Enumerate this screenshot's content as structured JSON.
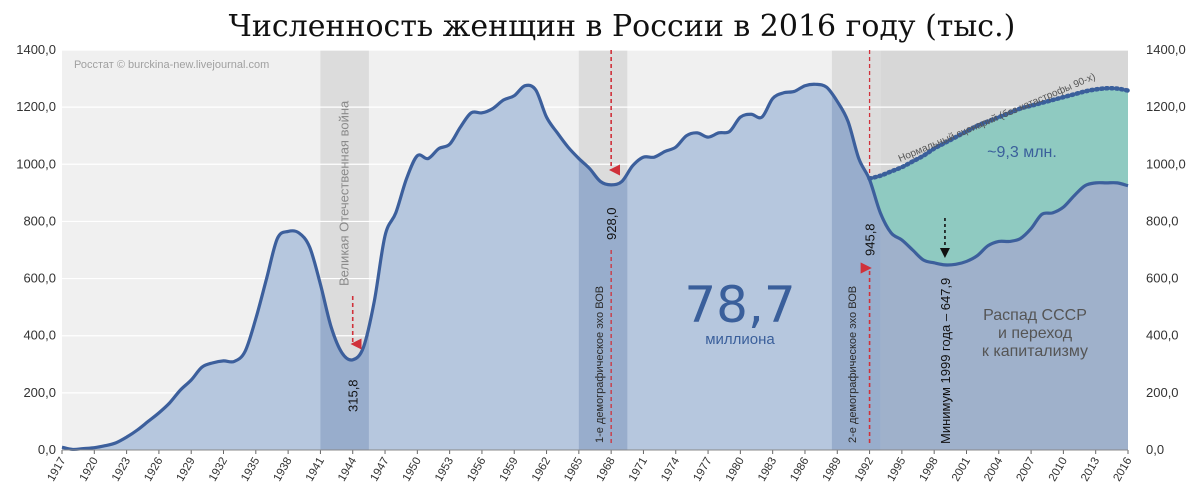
{
  "chart_data": {
    "type": "area",
    "title": "Численность женщин в России в 2016 году (тыс.)",
    "source": "Росстат © burckina-new.livejournal.com",
    "xlim": [
      1917,
      2016
    ],
    "ylim": [
      0,
      1400
    ],
    "y_ticks": [
      "0,0",
      "200,0",
      "400,0",
      "600,0",
      "800,0",
      "1000,0",
      "1200,0",
      "1400,0"
    ],
    "x_ticks": [
      1917,
      1920,
      1923,
      1926,
      1929,
      1932,
      1935,
      1938,
      1941,
      1944,
      1947,
      1950,
      1953,
      1956,
      1959,
      1962,
      1965,
      1968,
      1971,
      1974,
      1977,
      1980,
      1983,
      1986,
      1989,
      1992,
      1995,
      1998,
      2001,
      2004,
      2007,
      2010,
      2013,
      2016
    ],
    "grid": true,
    "series": [
      {
        "color": "#3c5f9c",
        "fill": "#b6c7de",
        "x": [
          1917,
          1918,
          1919,
          1920,
          1921,
          1922,
          1923,
          1924,
          1925,
          1926,
          1927,
          1928,
          1929,
          1930,
          1931,
          1932,
          1933,
          1934,
          1935,
          1936,
          1937,
          1938,
          1939,
          1940,
          1941,
          1942,
          1943,
          1944,
          1945,
          1946,
          1947,
          1948,
          1949,
          1950,
          1951,
          1952,
          1953,
          1954,
          1955,
          1956,
          1957,
          1958,
          1959,
          1960,
          1961,
          1962,
          1963,
          1964,
          1965,
          1966,
          1967,
          1968,
          1969,
          1970,
          1971,
          1972,
          1973,
          1974,
          1975,
          1976,
          1977,
          1978,
          1979,
          1980,
          1981,
          1982,
          1983,
          1984,
          1985,
          1986,
          1987,
          1988,
          1989,
          1990,
          1991,
          1992,
          1993,
          1994,
          1995,
          1996,
          1997,
          1998,
          1999,
          2000,
          2001,
          2002,
          2003,
          2004,
          2005,
          2006,
          2007,
          2008,
          2009,
          2010,
          2011,
          2012,
          2013,
          2014,
          2015,
          2016
        ],
        "values": [
          10,
          2,
          5,
          8,
          15,
          25,
          45,
          70,
          100,
          130,
          165,
          210,
          245,
          290,
          305,
          312,
          310,
          345,
          460,
          600,
          740,
          765,
          760,
          710,
          580,
          430,
          340,
          315.8,
          360,
          520,
          750,
          830,
          950,
          1030,
          1020,
          1055,
          1070,
          1130,
          1180,
          1180,
          1195,
          1225,
          1240,
          1275,
          1260,
          1165,
          1110,
          1060,
          1020,
          985,
          940,
          928,
          940,
          995,
          1025,
          1025,
          1045,
          1060,
          1100,
          1110,
          1095,
          1110,
          1115,
          1165,
          1175,
          1165,
          1230,
          1250,
          1255,
          1275,
          1280,
          1270,
          1220,
          1150,
          1020,
          945.8,
          830,
          760,
          735,
          700,
          665,
          655,
          647.9,
          650,
          660,
          680,
          715,
          730,
          730,
          740,
          775,
          825,
          830,
          850,
          890,
          925,
          935,
          935,
          935,
          925
        ]
      },
      {
        "name": "Нормальный сценарий (без катастрофы 90-х)",
        "color": "#3a5f9b",
        "style": "dotted",
        "x": [
          1992,
          1993,
          1994,
          1995,
          1996,
          1997,
          1998,
          1999,
          2000,
          2001,
          2002,
          2003,
          2004,
          2005,
          2006,
          2007,
          2008,
          2009,
          2010,
          2011,
          2012,
          2013,
          2014,
          2015,
          2016
        ],
        "values": [
          950,
          960,
          975,
          990,
          1010,
          1030,
          1055,
          1075,
          1095,
          1115,
          1135,
          1150,
          1165,
          1180,
          1195,
          1205,
          1215,
          1225,
          1235,
          1245,
          1255,
          1262,
          1266,
          1265,
          1258
        ]
      }
    ],
    "loss_fill": "#8fcac1",
    "shaded_periods": [
      {
        "from": 1941,
        "to": 1945.5,
        "label": "Великая Отечественная война"
      },
      {
        "from": 1965,
        "to": 1969.5,
        "label": "1-е демографическое эхо ВОВ"
      },
      {
        "from": 1988.5,
        "to": 1993,
        "label": "2-е демографическое эхо ВОВ"
      }
    ],
    "annotations": [
      {
        "year": 1944,
        "value": 315.8,
        "label": "315,8"
      },
      {
        "year": 1968,
        "value": 928,
        "label": "928,0"
      },
      {
        "year": 1992,
        "value": 945.8,
        "label": "945,8"
      },
      {
        "year": 1999,
        "value": 647.9,
        "label": "Минимум 1999 года – 647,9"
      }
    ],
    "total_value": "78,7",
    "total_unit": "миллиона",
    "loss_label": "~9,3 млн.",
    "ussr_label": [
      "Распад СССР",
      "и переход",
      "к капитализму"
    ]
  }
}
